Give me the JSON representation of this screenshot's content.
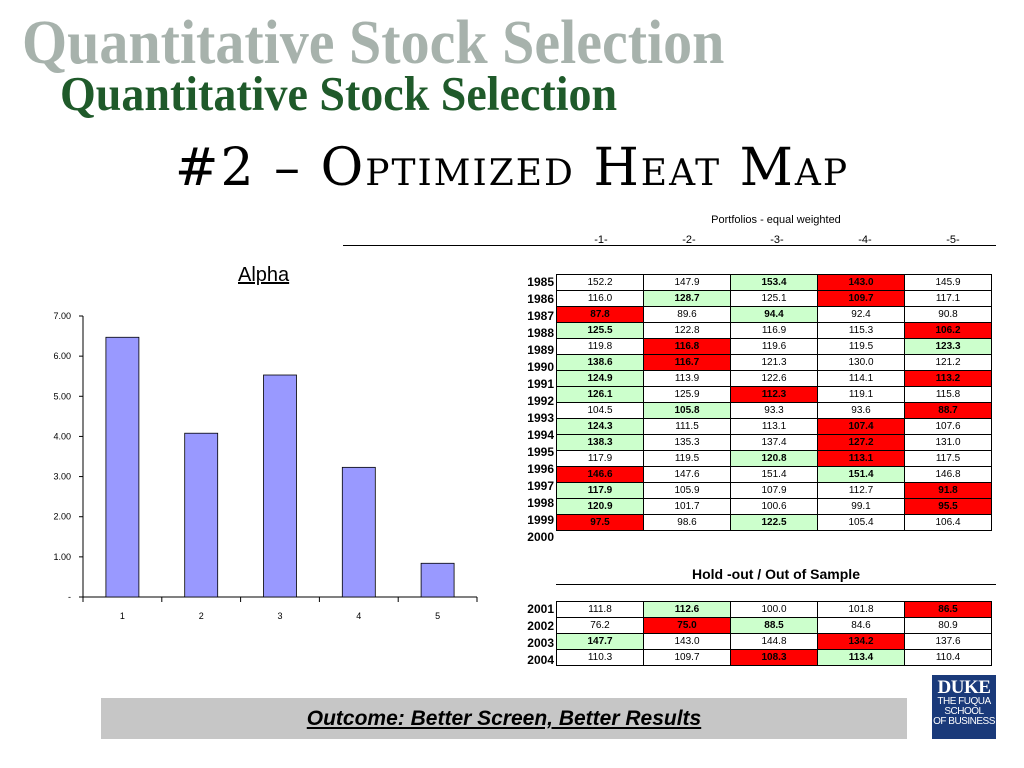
{
  "slide": {
    "title_shadow": "Quantitative Stock Selection",
    "title": "Quantitative Stock Selection",
    "subtitle": "#2 – Optimized Heat Map",
    "outcome": "Outcome: Better Screen, Better Results",
    "logo_line1": "DUKE",
    "logo_line2": "THE FUQUA",
    "logo_line3": "SCHOOL",
    "logo_line4": "OF BUSINESS"
  },
  "chart_data": {
    "type": "bar",
    "title": "Alpha",
    "categories": [
      "1",
      "2",
      "3",
      "4",
      "5"
    ],
    "values": [
      6.47,
      4.08,
      5.53,
      3.23,
      0.84
    ],
    "yticks": [
      "-",
      "1.00",
      "2.00",
      "3.00",
      "4.00",
      "5.00",
      "6.00",
      "7.00"
    ],
    "ylim": [
      0,
      7
    ],
    "bar_color": "#9999ff",
    "grid": false
  },
  "table": {
    "header": "Portfolios - equal weighted",
    "columns": [
      "-1-",
      "-2-",
      "-3-",
      "-4-",
      "-5-"
    ],
    "rows": [
      {
        "year": "1985",
        "cells": [
          {
            "v": "152.2",
            "c": ""
          },
          {
            "v": "147.9",
            "c": ""
          },
          {
            "v": "153.4",
            "c": "g"
          },
          {
            "v": "143.0",
            "c": "r"
          },
          {
            "v": "145.9",
            "c": ""
          }
        ]
      },
      {
        "year": "1986",
        "cells": [
          {
            "v": "116.0",
            "c": ""
          },
          {
            "v": "128.7",
            "c": "g"
          },
          {
            "v": "125.1",
            "c": ""
          },
          {
            "v": "109.7",
            "c": "r"
          },
          {
            "v": "117.1",
            "c": ""
          }
        ]
      },
      {
        "year": "1987",
        "cells": [
          {
            "v": "87.8",
            "c": "r"
          },
          {
            "v": "89.6",
            "c": ""
          },
          {
            "v": "94.4",
            "c": "g"
          },
          {
            "v": "92.4",
            "c": ""
          },
          {
            "v": "90.8",
            "c": ""
          }
        ]
      },
      {
        "year": "1988",
        "cells": [
          {
            "v": "125.5",
            "c": "g"
          },
          {
            "v": "122.8",
            "c": ""
          },
          {
            "v": "116.9",
            "c": ""
          },
          {
            "v": "115.3",
            "c": ""
          },
          {
            "v": "106.2",
            "c": "r"
          }
        ]
      },
      {
        "year": "1989",
        "cells": [
          {
            "v": "119.8",
            "c": ""
          },
          {
            "v": "116.8",
            "c": "r"
          },
          {
            "v": "119.6",
            "c": ""
          },
          {
            "v": "119.5",
            "c": ""
          },
          {
            "v": "123.3",
            "c": "g"
          }
        ]
      },
      {
        "year": "1990",
        "cells": [
          {
            "v": "138.6",
            "c": "g"
          },
          {
            "v": "116.7",
            "c": "r"
          },
          {
            "v": "121.3",
            "c": ""
          },
          {
            "v": "130.0",
            "c": ""
          },
          {
            "v": "121.2",
            "c": ""
          }
        ]
      },
      {
        "year": "1991",
        "cells": [
          {
            "v": "124.9",
            "c": "g"
          },
          {
            "v": "113.9",
            "c": ""
          },
          {
            "v": "122.6",
            "c": ""
          },
          {
            "v": "114.1",
            "c": ""
          },
          {
            "v": "113.2",
            "c": "r"
          }
        ]
      },
      {
        "year": "1992",
        "cells": [
          {
            "v": "126.1",
            "c": "g"
          },
          {
            "v": "125.9",
            "c": ""
          },
          {
            "v": "112.3",
            "c": "r"
          },
          {
            "v": "119.1",
            "c": ""
          },
          {
            "v": "115.8",
            "c": ""
          }
        ]
      },
      {
        "year": "1993",
        "cells": [
          {
            "v": "104.5",
            "c": ""
          },
          {
            "v": "105.8",
            "c": "g"
          },
          {
            "v": "93.3",
            "c": ""
          },
          {
            "v": "93.6",
            "c": ""
          },
          {
            "v": "88.7",
            "c": "r"
          }
        ]
      },
      {
        "year": "1994",
        "cells": [
          {
            "v": "124.3",
            "c": "g"
          },
          {
            "v": "111.5",
            "c": ""
          },
          {
            "v": "113.1",
            "c": ""
          },
          {
            "v": "107.4",
            "c": "r"
          },
          {
            "v": "107.6",
            "c": ""
          }
        ]
      },
      {
        "year": "1995",
        "cells": [
          {
            "v": "138.3",
            "c": "g"
          },
          {
            "v": "135.3",
            "c": ""
          },
          {
            "v": "137.4",
            "c": ""
          },
          {
            "v": "127.2",
            "c": "r"
          },
          {
            "v": "131.0",
            "c": ""
          }
        ]
      },
      {
        "year": "1996",
        "cells": [
          {
            "v": "117.9",
            "c": ""
          },
          {
            "v": "119.5",
            "c": ""
          },
          {
            "v": "120.8",
            "c": "g"
          },
          {
            "v": "113.1",
            "c": "r"
          },
          {
            "v": "117.5",
            "c": ""
          }
        ]
      },
      {
        "year": "1997",
        "cells": [
          {
            "v": "146.6",
            "c": "r"
          },
          {
            "v": "147.6",
            "c": ""
          },
          {
            "v": "151.4",
            "c": ""
          },
          {
            "v": "151.4",
            "c": "g"
          },
          {
            "v": "146.8",
            "c": ""
          }
        ]
      },
      {
        "year": "1998",
        "cells": [
          {
            "v": "117.9",
            "c": "g"
          },
          {
            "v": "105.9",
            "c": ""
          },
          {
            "v": "107.9",
            "c": ""
          },
          {
            "v": "112.7",
            "c": ""
          },
          {
            "v": "91.8",
            "c": "r"
          }
        ]
      },
      {
        "year": "1999",
        "cells": [
          {
            "v": "120.9",
            "c": "g"
          },
          {
            "v": "101.7",
            "c": ""
          },
          {
            "v": "100.6",
            "c": ""
          },
          {
            "v": "99.1",
            "c": ""
          },
          {
            "v": "95.5",
            "c": "r"
          }
        ]
      },
      {
        "year": "2000",
        "cells": [
          {
            "v": "97.5",
            "c": "r"
          },
          {
            "v": "98.6",
            "c": ""
          },
          {
            "v": "122.5",
            "c": "g"
          },
          {
            "v": "105.4",
            "c": ""
          },
          {
            "v": "106.4",
            "c": ""
          }
        ]
      }
    ],
    "holdout_title": "Hold -out / Out of Sample",
    "holdout_rows": [
      {
        "year": "2001",
        "cells": [
          {
            "v": "111.8",
            "c": ""
          },
          {
            "v": "112.6",
            "c": "g"
          },
          {
            "v": "100.0",
            "c": ""
          },
          {
            "v": "101.8",
            "c": ""
          },
          {
            "v": "86.5",
            "c": "r"
          }
        ]
      },
      {
        "year": "2002",
        "cells": [
          {
            "v": "76.2",
            "c": ""
          },
          {
            "v": "75.0",
            "c": "r"
          },
          {
            "v": "88.5",
            "c": "g"
          },
          {
            "v": "84.6",
            "c": ""
          },
          {
            "v": "80.9",
            "c": ""
          }
        ]
      },
      {
        "year": "2003",
        "cells": [
          {
            "v": "147.7",
            "c": "g"
          },
          {
            "v": "143.0",
            "c": ""
          },
          {
            "v": "144.8",
            "c": ""
          },
          {
            "v": "134.2",
            "c": "r"
          },
          {
            "v": "137.6",
            "c": ""
          }
        ]
      },
      {
        "year": "2004",
        "cells": [
          {
            "v": "110.3",
            "c": ""
          },
          {
            "v": "109.7",
            "c": ""
          },
          {
            "v": "108.3",
            "c": "r"
          },
          {
            "v": "113.4",
            "c": "g"
          },
          {
            "v": "110.4",
            "c": ""
          }
        ]
      }
    ]
  }
}
